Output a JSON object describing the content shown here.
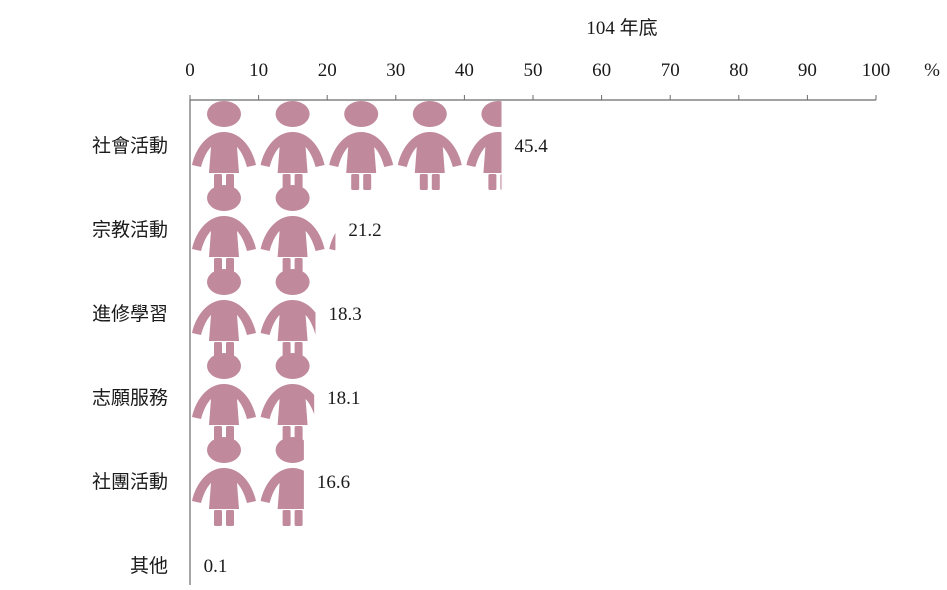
{
  "chart_data": {
    "type": "bar",
    "title": "104 年底",
    "unit": "%",
    "xlim": [
      0,
      100
    ],
    "ticks": [
      "0",
      "10",
      "20",
      "30",
      "40",
      "50",
      "60",
      "70",
      "80",
      "90",
      "100"
    ],
    "categories": [
      "社會活動",
      "宗教活動",
      "進修學習",
      "志願服務",
      "社團活動",
      "其他"
    ],
    "values": [
      45.4,
      21.2,
      18.3,
      18.1,
      16.6,
      0.1
    ],
    "value_labels": [
      "45.4",
      "21.2",
      "18.3",
      "18.1",
      "16.6",
      "0.1"
    ],
    "orientation": "horizontal",
    "marker": "person-icon",
    "colors": {
      "marker": "#c08a9c",
      "axis": "#6b6b6b",
      "text": "#1a1a1a"
    },
    "grid": false
  }
}
